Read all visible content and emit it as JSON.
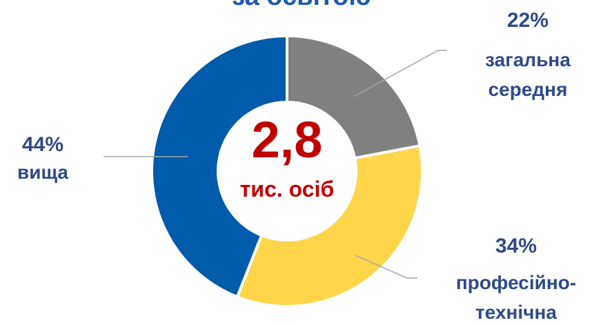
{
  "chart_data": {
    "type": "pie",
    "title": "за освітою",
    "categories": [
      "загальна середня",
      "професійно-технічна",
      "вища"
    ],
    "values": [
      22,
      34,
      44
    ],
    "value_labels": [
      "22%",
      "34%",
      "44%"
    ],
    "colors": [
      "#808080",
      "#FFD54A",
      "#005BAA"
    ],
    "annotations": [
      "2,8",
      "тис. осіб"
    ]
  }
}
